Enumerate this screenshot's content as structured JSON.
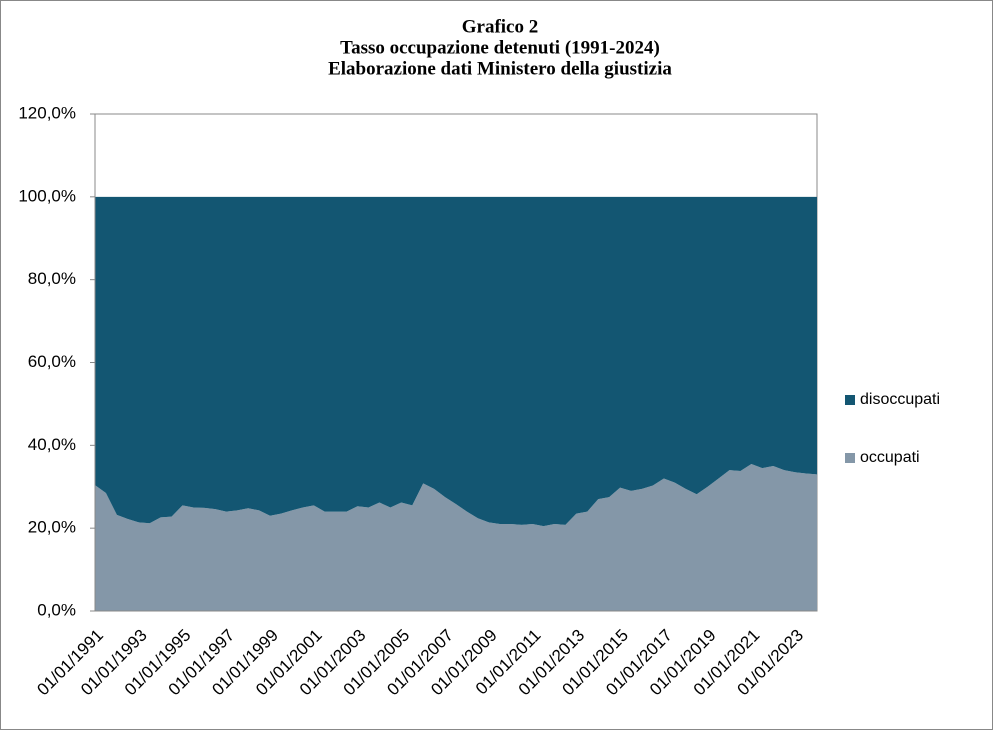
{
  "chart_data": {
    "type": "stacked_area",
    "title": [
      "Grafico 2",
      "Tasso occupazione detenuti (1991-2024)",
      "Elaborazione dati Ministero  della giustizia"
    ],
    "categories": [
      "01/01/1991",
      null,
      null,
      null,
      "01/01/1993",
      null,
      null,
      null,
      "01/01/1995",
      null,
      null,
      null,
      "01/01/1997",
      null,
      null,
      null,
      "01/01/1999",
      null,
      null,
      null,
      "01/01/2001",
      null,
      null,
      null,
      "01/01/2003",
      null,
      null,
      null,
      "01/01/2005",
      null,
      null,
      null,
      "01/01/2007",
      null,
      null,
      null,
      "01/01/2009",
      null,
      null,
      null,
      "01/01/2011",
      null,
      null,
      null,
      "01/01/2013",
      null,
      null,
      null,
      "01/01/2015",
      null,
      null,
      null,
      "01/01/2017",
      null,
      null,
      null,
      "01/01/2019",
      null,
      null,
      null,
      "01/01/2021",
      null,
      null,
      null,
      "01/01/2023",
      null,
      null
    ],
    "series": [
      {
        "name": "occupati",
        "color": "#8497a8",
        "values": [
          30.4,
          28.5,
          23.2,
          22.2,
          21.4,
          21.2,
          22.6,
          22.8,
          25.5,
          25.0,
          24.9,
          24.6,
          24.0,
          24.3,
          24.8,
          24.3,
          23.0,
          23.5,
          24.3,
          25.0,
          25.5,
          24.0,
          24.0,
          24.0,
          25.3,
          25.0,
          26.2,
          25.0,
          26.2,
          25.5,
          30.8,
          29.5,
          27.5,
          25.8,
          24.0,
          22.4,
          21.4,
          21.0,
          21.0,
          20.8,
          21.0,
          20.5,
          21.0,
          20.8,
          23.5,
          24.0,
          27.0,
          27.5,
          29.8,
          29.0,
          29.5,
          30.3,
          32.0,
          31.0,
          29.5,
          28.2,
          30.0,
          32.0,
          34.0,
          33.8,
          35.5,
          34.5,
          35.0,
          34.0,
          33.5,
          33.2,
          33.0
        ]
      },
      {
        "name": "disoccupati",
        "color": "#135672",
        "values": [
          69.6,
          71.5,
          76.8,
          77.8,
          78.6,
          78.8,
          77.4,
          77.2,
          74.5,
          75.0,
          75.1,
          75.4,
          76.0,
          75.7,
          75.2,
          75.7,
          77.0,
          76.5,
          75.7,
          75.0,
          74.5,
          76.0,
          76.0,
          76.0,
          74.7,
          75.0,
          73.8,
          75.0,
          73.8,
          74.5,
          69.2,
          70.5,
          72.5,
          74.2,
          76.0,
          77.6,
          78.6,
          79.0,
          79.0,
          79.2,
          79.0,
          79.5,
          79.0,
          79.2,
          76.5,
          76.0,
          73.0,
          72.5,
          70.2,
          71.0,
          70.5,
          69.7,
          68.0,
          69.0,
          70.5,
          71.8,
          70.0,
          68.0,
          66.0,
          66.2,
          64.5,
          65.5,
          65.0,
          66.0,
          66.5,
          66.8,
          67.0
        ]
      }
    ],
    "ylim": [
      0,
      120
    ],
    "yticks": [
      {
        "value": 0,
        "label": "0,0%"
      },
      {
        "value": 20,
        "label": "20,0%"
      },
      {
        "value": 40,
        "label": "40,0%"
      },
      {
        "value": 60,
        "label": "60,0%"
      },
      {
        "value": 80,
        "label": "80,0%"
      },
      {
        "value": 100,
        "label": "100,0%"
      },
      {
        "value": 120,
        "label": "120,0%"
      }
    ],
    "grid": false,
    "legend": "right"
  }
}
